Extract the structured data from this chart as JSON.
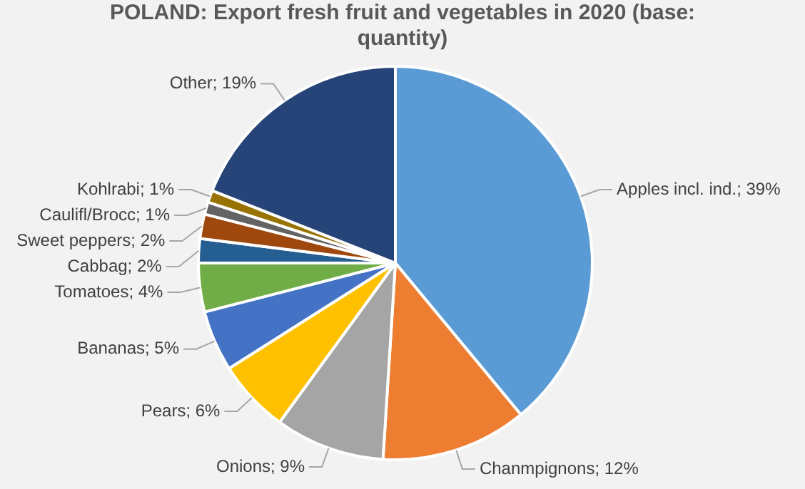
{
  "chart_data": {
    "type": "pie",
    "title": "POLAND: Export fresh fruit and vegetables in 2020 (base: quantity)",
    "categories": [
      "Apples incl. ind.",
      "Chanmpignons",
      "Onions",
      "Pears",
      "Bananas",
      "Tomatoes",
      "Cabbag",
      "Sweet peppers",
      "Caulifl/Brocc",
      "Kohlrabi",
      "Other"
    ],
    "values": [
      39,
      12,
      9,
      6,
      5,
      4,
      2,
      2,
      1,
      1,
      19
    ],
    "colors": [
      "#5b9bd5",
      "#ed7d31",
      "#a5a5a5",
      "#ffc000",
      "#4472c4",
      "#70ad47",
      "#255e91",
      "#9e480e",
      "#636363",
      "#997300",
      "#264478"
    ],
    "value_labels": [
      "39%",
      "12%",
      "9%",
      "6%",
      "5%",
      "4%",
      "2%",
      "2%",
      "1%",
      "1%",
      "19%"
    ],
    "legend": false
  }
}
